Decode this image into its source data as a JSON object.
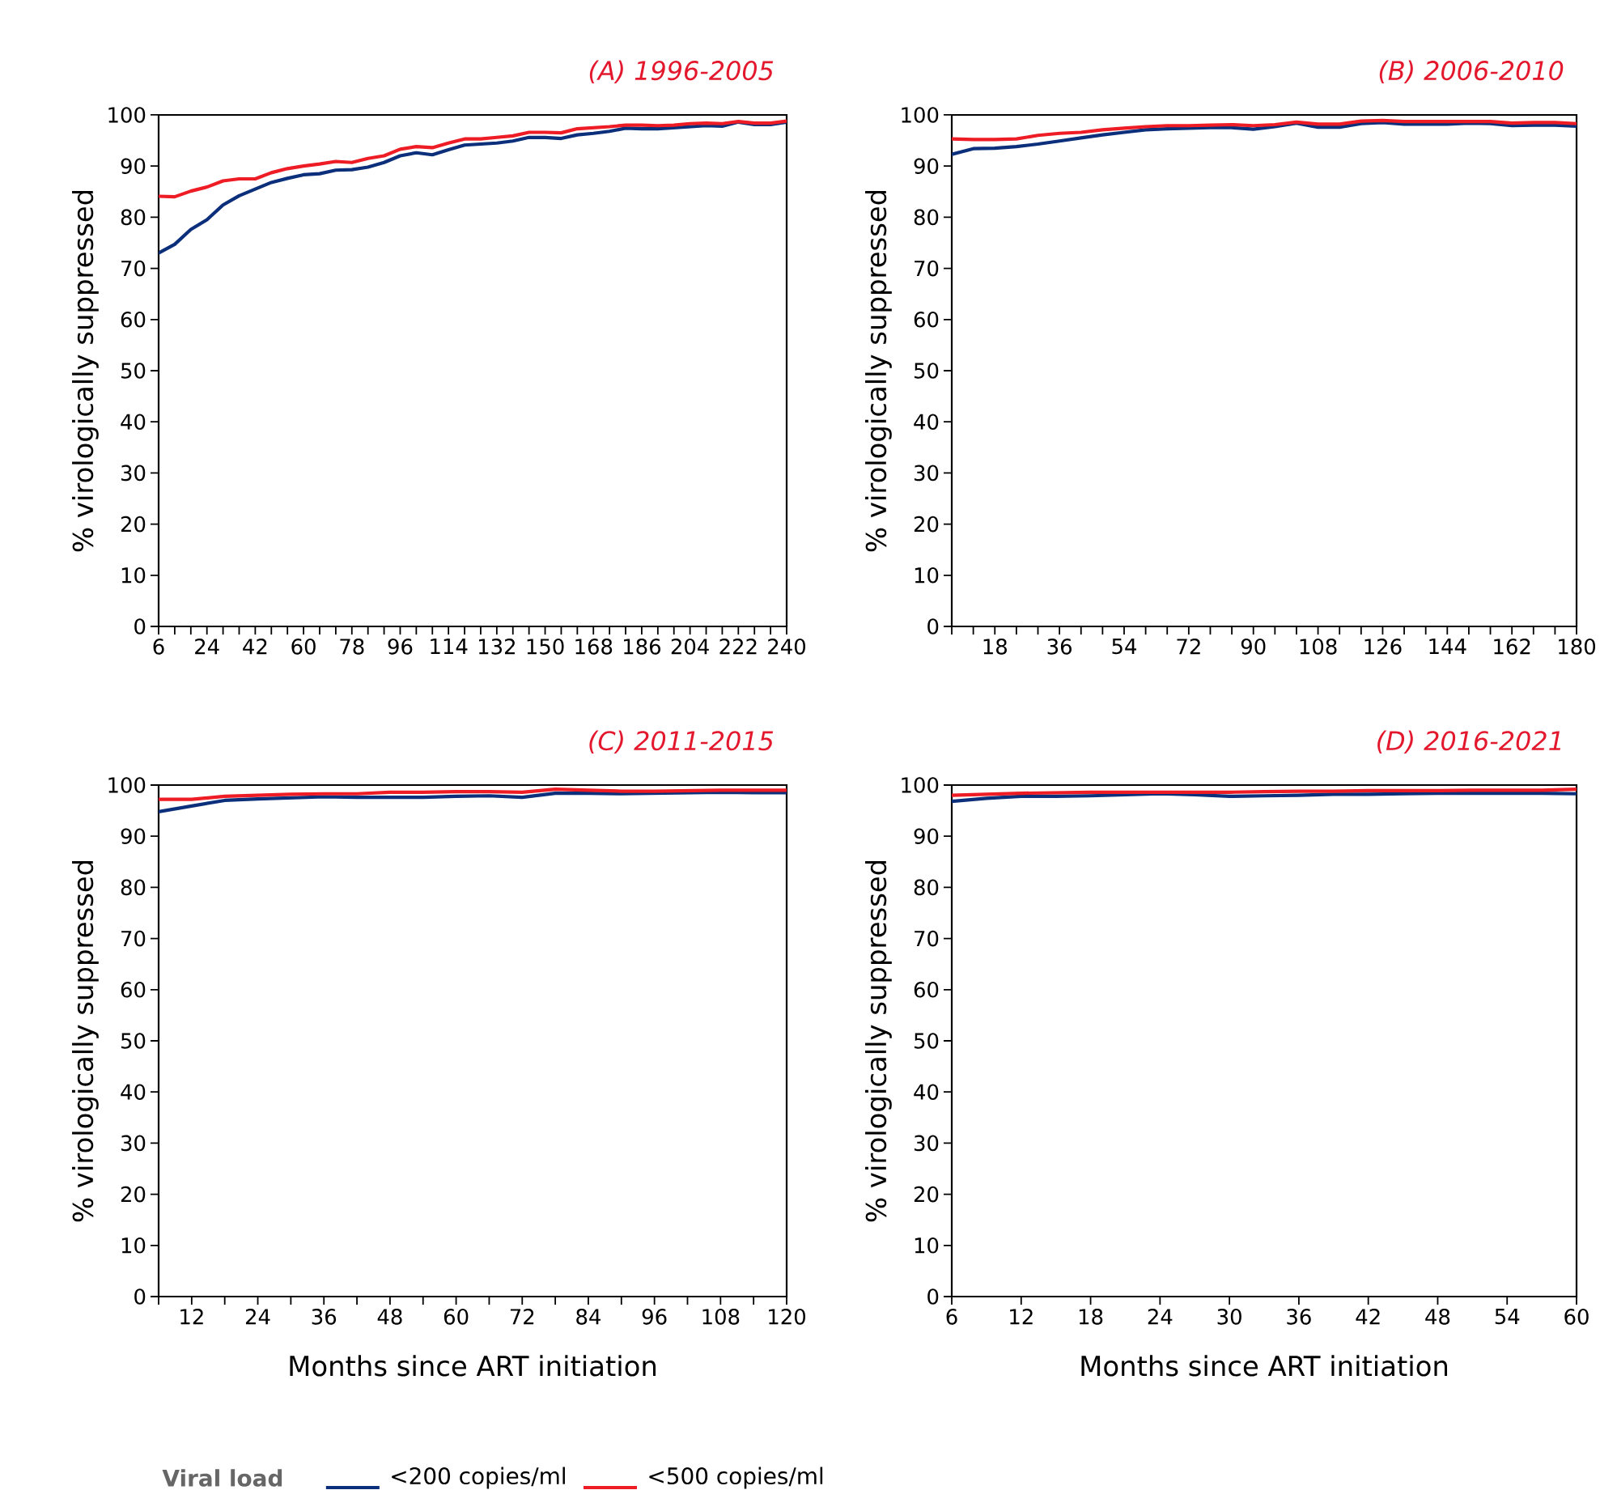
{
  "chart_data": [
    {
      "type": "line",
      "title": "(A) 1996-2005",
      "ylabel": "% virologically suppressed",
      "legend": "bottom",
      "legend_title": "Viral load",
      "x": [
        6,
        12,
        18,
        24,
        30,
        36,
        42,
        48,
        54,
        60,
        66,
        72,
        78,
        84,
        90,
        96,
        102,
        108,
        114,
        120,
        126,
        132,
        138,
        144,
        150,
        156,
        162,
        168,
        174,
        180,
        186,
        192,
        198,
        204,
        210,
        216,
        222,
        228,
        234,
        240
      ],
      "xlim": [
        6,
        240
      ],
      "ylim": [
        0,
        100
      ],
      "xticks": [
        6,
        {
          "value": 12,
          "label": null
        },
        {
          "value": 18,
          "label": null
        },
        24,
        {
          "value": 30,
          "label": null
        },
        {
          "value": 36,
          "label": null
        },
        42,
        {
          "value": 48,
          "label": null
        },
        {
          "value": 54,
          "label": null
        },
        60,
        {
          "value": 66,
          "label": null
        },
        {
          "value": 72,
          "label": null
        },
        78,
        {
          "value": 84,
          "label": null
        },
        {
          "value": 90,
          "label": null
        },
        96,
        {
          "value": 102,
          "label": null
        },
        {
          "value": 108,
          "label": null
        },
        114,
        {
          "value": 120,
          "label": null
        },
        {
          "value": 126,
          "label": null
        },
        132,
        {
          "value": 138,
          "label": null
        },
        {
          "value": 144,
          "label": null
        },
        150,
        {
          "value": 156,
          "label": null
        },
        {
          "value": 162,
          "label": null
        },
        168,
        {
          "value": 174,
          "label": null
        },
        {
          "value": 180,
          "label": null
        },
        186,
        {
          "value": 192,
          "label": null
        },
        {
          "value": 198,
          "label": null
        },
        204,
        {
          "value": 210,
          "label": null
        },
        {
          "value": 216,
          "label": null
        },
        222,
        {
          "value": 228,
          "label": null
        },
        {
          "value": 234,
          "label": null
        },
        240
      ],
      "yticks": [
        0,
        10,
        20,
        30,
        40,
        50,
        60,
        70,
        80,
        90,
        100
      ],
      "series": [
        {
          "name": "<200 copies/ml",
          "color": "#0b2f7a",
          "values": [
            73,
            74.7,
            77.6,
            79.5,
            82.4,
            84.2,
            85.5,
            86.8,
            87.6,
            88.3,
            88.5,
            89.2,
            89.3,
            89.8,
            90.7,
            92,
            92.6,
            92.2,
            93.2,
            94.1,
            94.3,
            94.5,
            94.9,
            95.6,
            95.6,
            95.4,
            96.1,
            96.4,
            96.8,
            97.4,
            97.3,
            97.3,
            97.5,
            97.7,
            97.9,
            97.8,
            98.6,
            98.1,
            98.1,
            98.6
          ]
        },
        {
          "name": "<500 copies/ml",
          "color": "#ee1c25",
          "values": [
            84.1,
            84,
            85.1,
            85.9,
            87.1,
            87.5,
            87.5,
            88.7,
            89.5,
            90,
            90.4,
            90.9,
            90.7,
            91.5,
            92,
            93.3,
            93.8,
            93.6,
            94.5,
            95.3,
            95.3,
            95.6,
            95.9,
            96.6,
            96.6,
            96.5,
            97.3,
            97.5,
            97.7,
            98,
            98,
            97.9,
            98,
            98.3,
            98.4,
            98.3,
            98.7,
            98.4,
            98.4,
            98.8
          ]
        }
      ]
    },
    {
      "type": "line",
      "title": "(B) 2006-2010",
      "ylabel": "% virologically suppressed",
      "x": [
        6,
        12,
        18,
        24,
        30,
        36,
        42,
        48,
        54,
        60,
        66,
        72,
        78,
        84,
        90,
        96,
        102,
        108,
        114,
        120,
        126,
        132,
        138,
        144,
        150,
        156,
        162,
        168,
        174,
        180
      ],
      "xlim": [
        6,
        180
      ],
      "ylim": [
        0,
        100
      ],
      "xticks": [
        {
          "value": 6,
          "label": null
        },
        {
          "value": 12,
          "label": null
        },
        18,
        {
          "value": 24,
          "label": null
        },
        {
          "value": 30,
          "label": null
        },
        36,
        {
          "value": 42,
          "label": null
        },
        {
          "value": 48,
          "label": null
        },
        54,
        {
          "value": 60,
          "label": null
        },
        {
          "value": 66,
          "label": null
        },
        72,
        {
          "value": 78,
          "label": null
        },
        {
          "value": 84,
          "label": null
        },
        90,
        {
          "value": 96,
          "label": null
        },
        {
          "value": 102,
          "label": null
        },
        108,
        {
          "value": 114,
          "label": null
        },
        {
          "value": 120,
          "label": null
        },
        126,
        {
          "value": 132,
          "label": null
        },
        {
          "value": 138,
          "label": null
        },
        144,
        {
          "value": 150,
          "label": null
        },
        {
          "value": 156,
          "label": null
        },
        162,
        {
          "value": 168,
          "label": null
        },
        {
          "value": 174,
          "label": null
        },
        180
      ],
      "yticks": [
        0,
        10,
        20,
        30,
        40,
        50,
        60,
        70,
        80,
        90,
        100
      ],
      "series": [
        {
          "color": "#0b2f7a",
          "values": [
            92.3,
            93.4,
            93.5,
            93.8,
            94.3,
            94.9,
            95.5,
            96.1,
            96.6,
            97.1,
            97.3,
            97.4,
            97.5,
            97.5,
            97.2,
            97.7,
            98.4,
            97.6,
            97.6,
            98.3,
            98.5,
            98.2,
            98.2,
            98.2,
            98.4,
            98.3,
            97.9,
            98,
            98,
            97.8
          ]
        },
        {
          "color": "#ee1c25",
          "values": [
            95.3,
            95.2,
            95.2,
            95.3,
            96,
            96.4,
            96.6,
            97.1,
            97.4,
            97.7,
            97.9,
            97.9,
            98,
            98.1,
            97.9,
            98.1,
            98.6,
            98.2,
            98.2,
            98.8,
            98.9,
            98.7,
            98.7,
            98.7,
            98.7,
            98.7,
            98.4,
            98.5,
            98.5,
            98.3
          ]
        }
      ]
    },
    {
      "type": "line",
      "title": "(C) 2011-2015",
      "ylabel": "% virologically suppressed",
      "xlabel": "Months since ART initiation",
      "x": [
        6,
        12,
        18,
        24,
        30,
        36,
        42,
        48,
        54,
        60,
        66,
        72,
        78,
        84,
        90,
        96,
        102,
        108,
        114,
        120
      ],
      "xlim": [
        6,
        120
      ],
      "ylim": [
        0,
        100
      ],
      "xticks": [
        {
          "value": 6,
          "label": null
        },
        12,
        {
          "value": 18,
          "label": null
        },
        24,
        {
          "value": 30,
          "label": null
        },
        36,
        {
          "value": 42,
          "label": null
        },
        48,
        {
          "value": 54,
          "label": null
        },
        60,
        {
          "value": 66,
          "label": null
        },
        72,
        {
          "value": 78,
          "label": null
        },
        84,
        {
          "value": 90,
          "label": null
        },
        96,
        {
          "value": 102,
          "label": null
        },
        108,
        {
          "value": 114,
          "label": null
        },
        120
      ],
      "yticks": [
        0,
        10,
        20,
        30,
        40,
        50,
        60,
        70,
        80,
        90,
        100
      ],
      "series": [
        {
          "color": "#0b2f7a",
          "values": [
            94.8,
            95.9,
            97,
            97.3,
            97.5,
            97.7,
            97.6,
            97.6,
            97.6,
            97.8,
            97.9,
            97.6,
            98.4,
            98.4,
            98.3,
            98.4,
            98.5,
            98.6,
            98.5,
            98.5
          ]
        },
        {
          "color": "#ee1c25",
          "values": [
            97.2,
            97.2,
            97.8,
            98,
            98.2,
            98.3,
            98.3,
            98.6,
            98.6,
            98.7,
            98.7,
            98.6,
            99.2,
            99,
            98.8,
            98.8,
            98.9,
            99,
            99,
            99
          ]
        }
      ]
    },
    {
      "type": "line",
      "title": "(D) 2016-2021",
      "ylabel": "% virologically suppressed",
      "xlabel": "Months since ART initiation",
      "x": [
        6,
        9,
        12,
        15,
        18,
        21,
        24,
        27,
        30,
        33,
        36,
        39,
        42,
        45,
        48,
        51,
        54,
        57,
        60
      ],
      "xlim": [
        6,
        60
      ],
      "ylim": [
        0,
        100
      ],
      "xticks": [
        6,
        12,
        18,
        24,
        30,
        36,
        42,
        48,
        54,
        60
      ],
      "yticks": [
        0,
        10,
        20,
        30,
        40,
        50,
        60,
        70,
        80,
        90,
        100
      ],
      "series": [
        {
          "color": "#0b2f7a",
          "values": [
            96.8,
            97.4,
            97.8,
            97.8,
            97.9,
            98.1,
            98.3,
            98.1,
            97.8,
            97.9,
            98,
            98.2,
            98.2,
            98.3,
            98.4,
            98.4,
            98.4,
            98.4,
            98.3
          ]
        },
        {
          "color": "#ee1c25",
          "values": [
            98,
            98.2,
            98.4,
            98.5,
            98.6,
            98.6,
            98.6,
            98.6,
            98.6,
            98.7,
            98.8,
            98.8,
            98.9,
            98.9,
            98.9,
            99,
            99,
            99,
            99.2
          ]
        }
      ]
    }
  ]
}
